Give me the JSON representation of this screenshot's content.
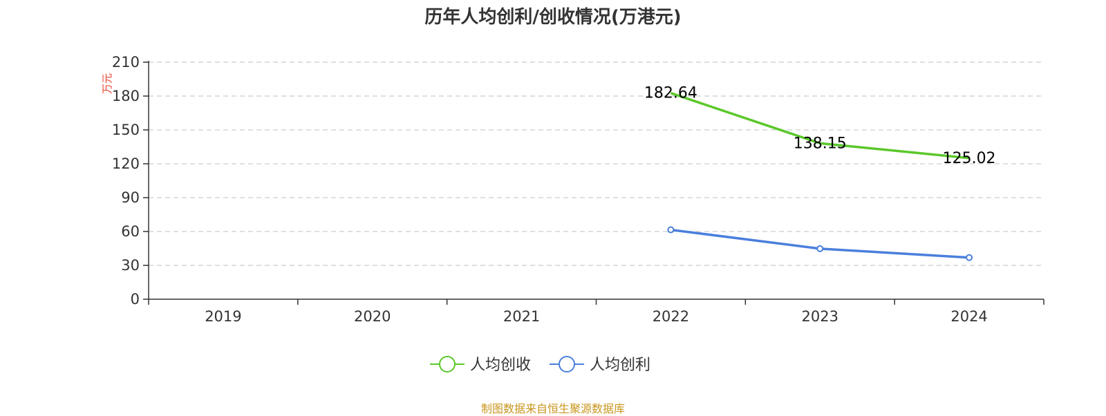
{
  "chart_data": {
    "type": "line",
    "title": "历年人均创利/创收情况(万港元)",
    "ylabel": "万元",
    "categories": [
      "2019",
      "2020",
      "2021",
      "2022",
      "2023",
      "2024"
    ],
    "ylim": [
      0,
      210
    ],
    "yticks": [
      0,
      30,
      60,
      90,
      120,
      150,
      180,
      210
    ],
    "grid": true,
    "legend_position": "bottom-center",
    "series": [
      {
        "name": "人均创收",
        "color": "#5bc72a",
        "values": [
          null,
          null,
          null,
          182.64,
          138.15,
          125.02
        ],
        "labels": [
          "",
          "",
          "",
          "182.64",
          "138.15",
          "125.02"
        ],
        "show_markers": false
      },
      {
        "name": "人均创利",
        "color": "#4a7fdc",
        "values": [
          null,
          null,
          null,
          61.5,
          44.8,
          36.9
        ],
        "labels": [
          "",
          "",
          "",
          "",
          "",
          ""
        ],
        "show_markers": true
      }
    ]
  },
  "source_text": "制图数据来自恒生聚源数据库"
}
